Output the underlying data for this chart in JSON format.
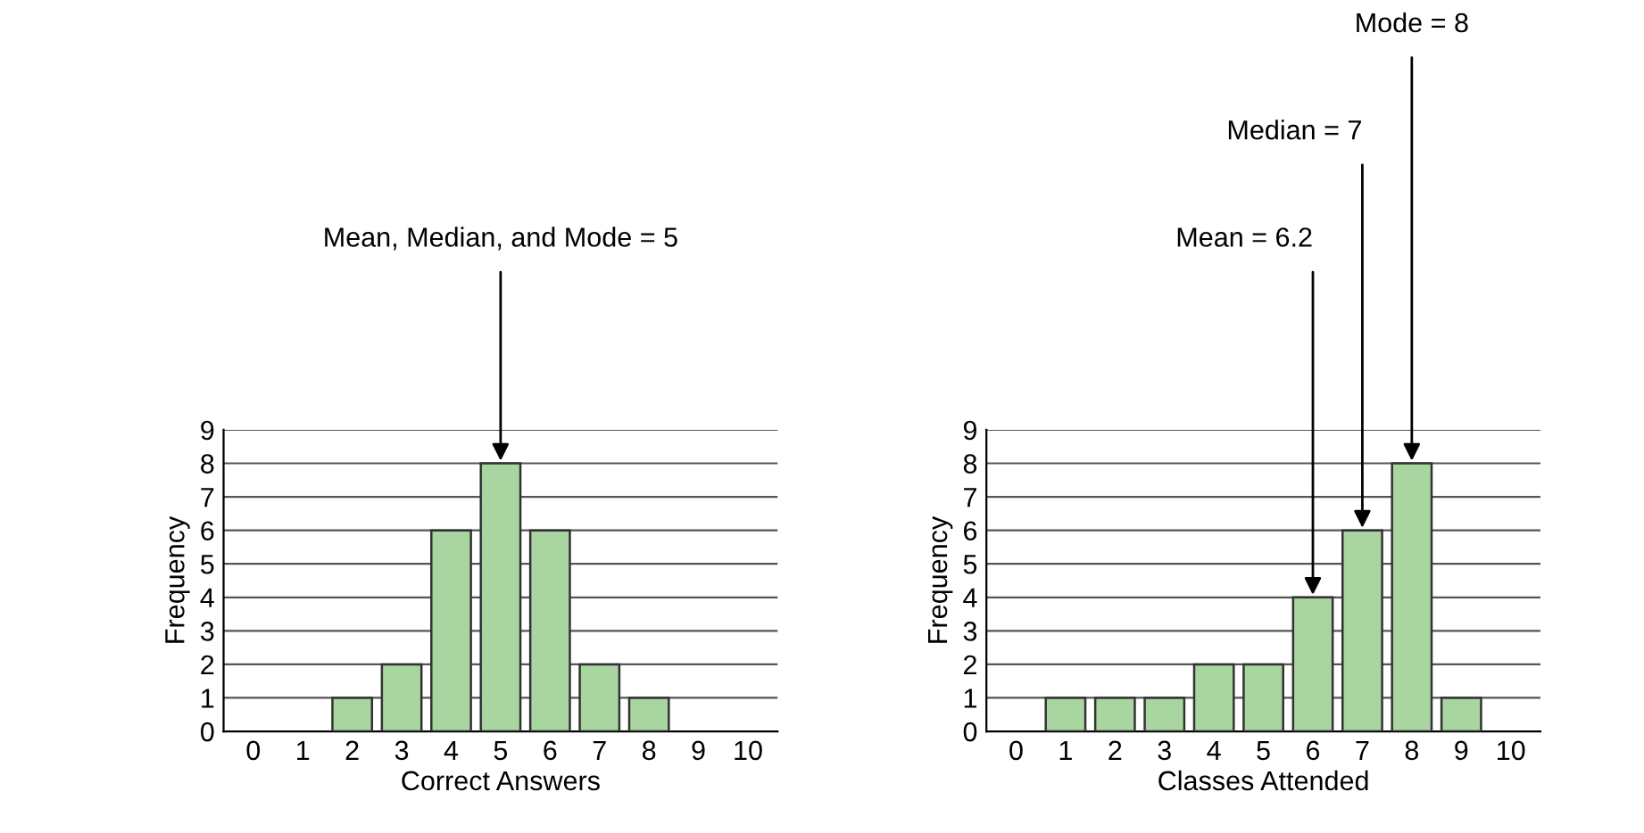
{
  "chart_data": [
    {
      "type": "bar",
      "categories": [
        "0",
        "1",
        "2",
        "3",
        "4",
        "5",
        "6",
        "7",
        "8",
        "9",
        "10"
      ],
      "values": [
        0,
        0,
        1,
        2,
        6,
        8,
        6,
        2,
        1,
        0,
        0
      ],
      "color": "#a9d5a0",
      "xlabel": "Correct Answers",
      "ylabel": "Frequency",
      "ylim": [
        0,
        9
      ],
      "yticks": [
        0,
        1,
        2,
        3,
        4,
        5,
        6,
        7,
        8,
        9
      ],
      "grid": "y",
      "legend": false,
      "annotations": [
        {
          "text": "Mean, Median, and Mode = 5",
          "x": "5",
          "y": 8
        }
      ]
    },
    {
      "type": "bar",
      "categories": [
        "0",
        "1",
        "2",
        "3",
        "4",
        "5",
        "6",
        "7",
        "8",
        "9",
        "10"
      ],
      "values": [
        0,
        1,
        1,
        1,
        2,
        2,
        4,
        6,
        8,
        1,
        0
      ],
      "color": "#a9d5a0",
      "xlabel": "Classes Attended",
      "ylabel": "Frequency",
      "ylim": [
        0,
        9
      ],
      "yticks": [
        0,
        1,
        2,
        3,
        4,
        5,
        6,
        7,
        8,
        9
      ],
      "grid": "y",
      "legend": false,
      "annotations": [
        {
          "text": "Mean = 6.2",
          "x": "6",
          "y": 4
        },
        {
          "text": "Median = 7",
          "x": "7",
          "y": 6
        },
        {
          "text": "Mode = 8",
          "x": "8",
          "y": 8
        }
      ]
    }
  ]
}
